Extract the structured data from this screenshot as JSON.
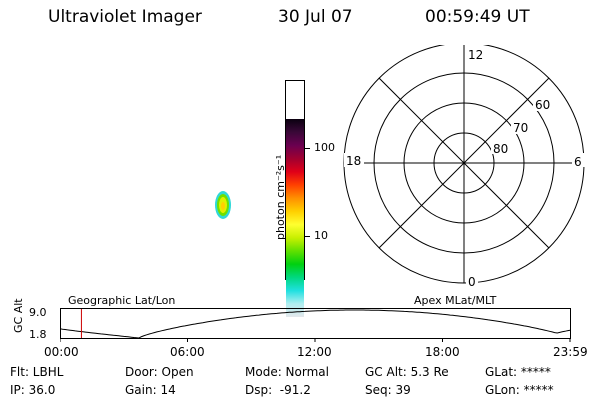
{
  "header": {
    "title": "Ultraviolet Imager",
    "date": "30 Jul 07",
    "time": "00:59:49 UT"
  },
  "colorbar": {
    "unit_label": "photon cm⁻²s⁻¹",
    "tick_labels": [
      "100",
      "10"
    ],
    "tick_values": [
      100,
      10
    ],
    "scale": "log",
    "colors": [
      "#0a0010",
      "#3a0838",
      "#6a0050",
      "#a00030",
      "#e00018",
      "#ff4000",
      "#ff9000",
      "#ffd000",
      "#ffff30",
      "#c8f000",
      "#60e000",
      "#00d010",
      "#00d880",
      "#20e0e0",
      "#b0eef0",
      "#e4e8ec"
    ]
  },
  "polar_plot": {
    "mlt_labels": {
      "top": "12",
      "left": "18",
      "right": "6",
      "bottom": "0"
    },
    "lat_labels": [
      "60",
      "70",
      "80"
    ]
  },
  "bottom_panel": {
    "ylabel": "GC Alt",
    "y_ticks": [
      "9.0",
      "1.8"
    ],
    "left_title": "Geographic Lat/Lon",
    "right_title": "Apex MLat/MLT",
    "x_ticks": [
      "00:00",
      "06:00",
      "12:00",
      "18:00",
      "23:59"
    ],
    "current_time_fraction": 0.042,
    "marker_color": "#cc0000"
  },
  "info": {
    "row1": {
      "filter": "Flt: LBHL",
      "door": "Door: Open",
      "mode": "Mode: Normal",
      "gc_alt": "GC Alt: 5.3 Re",
      "glat": "GLat: *****"
    },
    "row2": {
      "ip": "IP: 36.0",
      "gain": "Gain: 14",
      "dsp": "Dsp:  -91.2",
      "seq": "Seq: 39",
      "glon": "GLon: *****"
    }
  }
}
